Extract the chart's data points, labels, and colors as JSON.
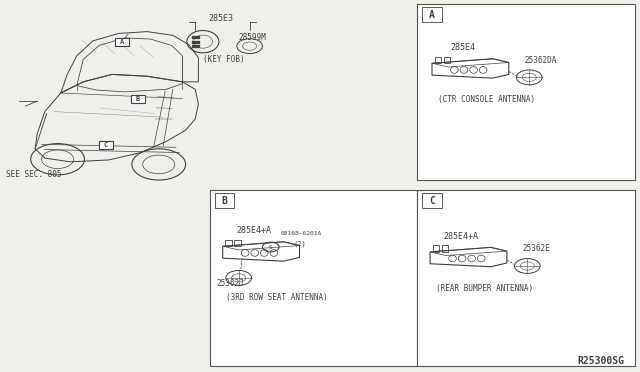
{
  "bg_color": "#f0f0eb",
  "line_color": "#404040",
  "title_ref": "R25300SG",
  "border_color": "#555555",
  "caption_A": "(CTR CONSOLE ANTENNA)",
  "caption_B": "(3RD ROW SEAT ANTENNA)",
  "caption_C": "(REAR BUMPER ANTENNA)",
  "caption_keyfob": "(KEY FOB)",
  "part_keyfob_main": "285E3",
  "part_keyfob_sub": "28599M",
  "part_A_main": "285E4",
  "part_A_sub": "25362DA",
  "part_B_main": "285E4+A",
  "part_B_bolt": "08168-6201A",
  "part_B_bolt_suffix": "(2)",
  "part_B_sub": "25362J",
  "part_C_main": "285E4+A",
  "part_C_sub": "25362E",
  "see_sec": "SEE SEC. 805"
}
